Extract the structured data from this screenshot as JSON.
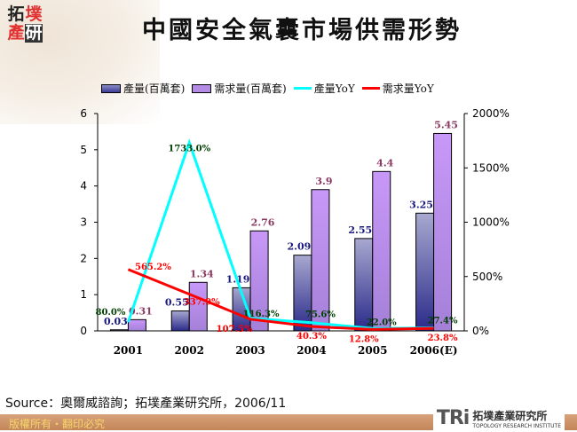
{
  "logo": {
    "chars": [
      "拓",
      "墣",
      "產",
      "研"
    ]
  },
  "title": "中國安全氣囊市場供需形勢",
  "source": "Source：奧爾威諮詢；拓墣產業研究所，2006/11",
  "footer": {
    "copyright": "版權所有・翻印必究",
    "brand": "TRi",
    "brand_cn": "拓墣產業研究所",
    "brand_en": "TOPOLOGY RESEARCH INSTITUTE"
  },
  "colors": {
    "production": "#3c3c96",
    "demand": "#b48ce6",
    "production_yoy": "#00ffff",
    "demand_yoy": "#ff0000",
    "prod_label": "#1a1a80",
    "demand_label": "#8b3a62",
    "prod_yoy_label": "#004000",
    "demand_yoy_label": "#ff0000"
  },
  "chart_data": {
    "type": "bar+line",
    "categories": [
      "2001",
      "2002",
      "2003",
      "2004",
      "2005",
      "2006(E)"
    ],
    "series": [
      {
        "name": "產量(百萬套)",
        "type": "bar",
        "axis": "left",
        "values": [
          0.03,
          0.55,
          1.19,
          2.09,
          2.55,
          3.25
        ],
        "labels": [
          "0.03",
          "0.55",
          "1.19",
          "2.09",
          "2.55",
          "3.25"
        ]
      },
      {
        "name": "需求量(百萬套)",
        "type": "bar",
        "axis": "left",
        "values": [
          0.31,
          1.34,
          2.76,
          3.9,
          4.4,
          5.45
        ],
        "labels": [
          "0.31",
          "1.34",
          "2.76",
          "3.9",
          "4.4",
          "5.45"
        ]
      },
      {
        "name": "產量YoY",
        "type": "line",
        "axis": "right",
        "values": [
          80.0,
          1733.0,
          116.3,
          75.6,
          22.0,
          27.4
        ],
        "labels": [
          "80.0%",
          "1733.0%",
          "116.3%",
          "75.6%",
          "22.0%",
          "27.4%"
        ]
      },
      {
        "name": "需求量YoY",
        "type": "line",
        "axis": "right",
        "values": [
          565.2,
          337.9,
          107.5,
          40.3,
          12.8,
          23.8
        ],
        "labels": [
          "565.2%",
          "337.9%",
          "107.5%",
          "40.3%",
          "12.8%",
          "23.8%"
        ]
      }
    ],
    "left_axis": {
      "range": [
        0,
        6
      ],
      "ticks": [
        "0",
        "1",
        "2",
        "3",
        "4",
        "5",
        "6"
      ]
    },
    "right_axis": {
      "range": [
        0,
        2000
      ],
      "ticks": [
        "0%",
        "500%",
        "1000%",
        "1500%",
        "2000%"
      ]
    },
    "legend": "top",
    "grid": false
  }
}
